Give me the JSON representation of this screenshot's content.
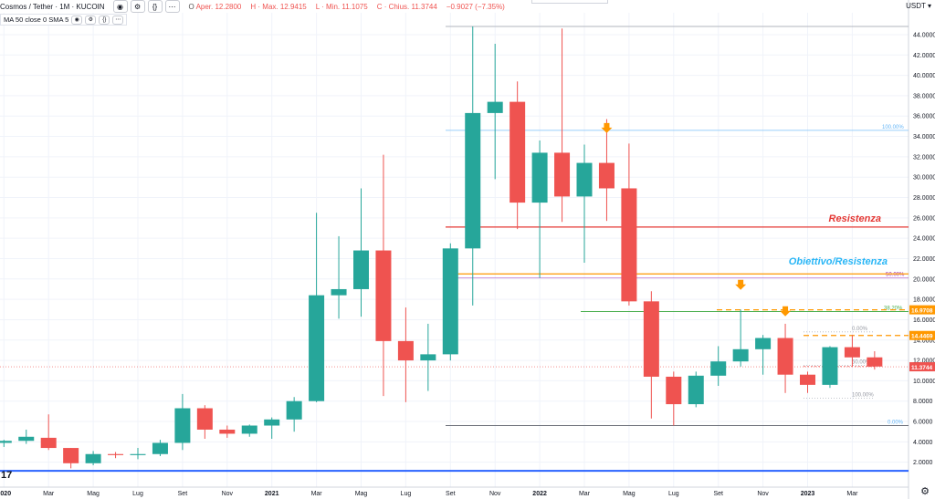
{
  "header": {
    "symbol": "Cosmos / Tether · 1M · KUCOIN",
    "open_label": "O",
    "open": "Aper. 12.2800",
    "high": "H · Max. 12.9415",
    "low": "L · Min. 11.1075",
    "close": "C · Chius. 11.3744",
    "change": "−0.9027 (−7.35%)",
    "eye_icon": "eye-icon",
    "settings_icon": "gear-icon",
    "code_icon": "braces-icon",
    "more_icon": "more-icon"
  },
  "indicator": {
    "label": "MA 50 close 0 SMA 5"
  },
  "axis": {
    "unit": "USDT ▾"
  },
  "colors": {
    "up": "#26a69a",
    "down": "#ef5350",
    "orange": "#ff9800",
    "blue": "#2962ff",
    "grid": "#f0f3fa"
  },
  "chart_data": {
    "type": "candlestick",
    "ylim": [
      0,
      45
    ],
    "y_ticks": [
      "2.0000",
      "4.0000",
      "6.0000",
      "8.0000",
      "10.0000",
      "12.0000",
      "14.0000",
      "16.0000",
      "18.0000",
      "20.0000",
      "22.0000",
      "24.0000",
      "26.0000",
      "28.0000",
      "30.0000",
      "32.0000",
      "34.0000",
      "36.0000",
      "38.0000",
      "40.0000",
      "42.0000",
      "44.0000"
    ],
    "x_labels": [
      "2020",
      "Mar",
      "Mag",
      "Lug",
      "Set",
      "Nov",
      "2021",
      "Mar",
      "Mag",
      "Lug",
      "Set",
      "Nov",
      "2022",
      "Mar",
      "Mag",
      "Lug",
      "Set",
      "Nov",
      "2023",
      "Mar"
    ],
    "candles": [
      {
        "o": 3.9,
        "h": 4.2,
        "l": 3.5,
        "c": 4.1
      },
      {
        "o": 4.1,
        "h": 5.2,
        "l": 3.8,
        "c": 4.5
      },
      {
        "o": 4.4,
        "h": 6.7,
        "l": 3.2,
        "c": 3.4
      },
      {
        "o": 3.4,
        "h": 3.4,
        "l": 1.4,
        "c": 1.9
      },
      {
        "o": 1.9,
        "h": 3.1,
        "l": 1.7,
        "c": 2.8
      },
      {
        "o": 2.8,
        "h": 3.0,
        "l": 2.4,
        "c": 2.7
      },
      {
        "o": 2.7,
        "h": 3.4,
        "l": 2.3,
        "c": 2.8
      },
      {
        "o": 2.8,
        "h": 4.2,
        "l": 2.6,
        "c": 3.9
      },
      {
        "o": 3.9,
        "h": 8.7,
        "l": 3.2,
        "c": 7.3
      },
      {
        "o": 7.3,
        "h": 7.6,
        "l": 4.3,
        "c": 5.2
      },
      {
        "o": 5.2,
        "h": 5.6,
        "l": 4.4,
        "c": 4.8
      },
      {
        "o": 4.8,
        "h": 5.7,
        "l": 4.5,
        "c": 5.6
      },
      {
        "o": 5.6,
        "h": 6.4,
        "l": 4.3,
        "c": 6.2
      },
      {
        "o": 6.2,
        "h": 8.4,
        "l": 5.0,
        "c": 8.0
      },
      {
        "o": 8.0,
        "h": 26.5,
        "l": 7.9,
        "c": 18.4
      },
      {
        "o": 18.4,
        "h": 24.2,
        "l": 16.1,
        "c": 19.0
      },
      {
        "o": 19.0,
        "h": 28.9,
        "l": 16.3,
        "c": 22.8
      },
      {
        "o": 22.8,
        "h": 32.2,
        "l": 8.5,
        "c": 13.9
      },
      {
        "o": 13.9,
        "h": 17.2,
        "l": 7.9,
        "c": 12.0
      },
      {
        "o": 12.0,
        "h": 15.6,
        "l": 9.0,
        "c": 12.6
      },
      {
        "o": 12.6,
        "h": 23.5,
        "l": 12.0,
        "c": 23.0
      },
      {
        "o": 23.0,
        "h": 44.8,
        "l": 17.4,
        "c": 36.3
      },
      {
        "o": 36.3,
        "h": 43.1,
        "l": 29.8,
        "c": 37.4
      },
      {
        "o": 37.4,
        "h": 39.4,
        "l": 24.9,
        "c": 27.5
      },
      {
        "o": 27.5,
        "h": 33.6,
        "l": 20.1,
        "c": 32.4
      },
      {
        "o": 32.4,
        "h": 44.6,
        "l": 25.6,
        "c": 28.1
      },
      {
        "o": 28.1,
        "h": 33.2,
        "l": 21.6,
        "c": 31.4
      },
      {
        "o": 31.4,
        "h": 35.7,
        "l": 25.7,
        "c": 28.9
      },
      {
        "o": 28.9,
        "h": 33.3,
        "l": 17.4,
        "c": 17.8
      },
      {
        "o": 17.8,
        "h": 18.8,
        "l": 6.3,
        "c": 10.4
      },
      {
        "o": 10.4,
        "h": 10.9,
        "l": 5.6,
        "c": 7.7
      },
      {
        "o": 7.7,
        "h": 10.9,
        "l": 7.4,
        "c": 10.5
      },
      {
        "o": 10.5,
        "h": 13.4,
        "l": 9.5,
        "c": 11.9
      },
      {
        "o": 11.9,
        "h": 17.0,
        "l": 11.4,
        "c": 13.1
      },
      {
        "o": 13.1,
        "h": 14.5,
        "l": 10.6,
        "c": 14.2
      },
      {
        "o": 14.2,
        "h": 15.6,
        "l": 8.8,
        "c": 10.6
      },
      {
        "o": 10.6,
        "h": 10.9,
        "l": 8.8,
        "c": 9.6
      },
      {
        "o": 9.6,
        "h": 13.4,
        "l": 9.3,
        "c": 13.3
      },
      {
        "o": 13.3,
        "h": 14.5,
        "l": 11.4,
        "c": 12.3
      },
      {
        "o": 12.3,
        "h": 12.9,
        "l": 11.1,
        "c": 11.4
      }
    ],
    "levels": [
      {
        "name": "Resistenza",
        "value": 25.1,
        "color": "#e53935",
        "from": 39
      },
      {
        "name": "Obiettivo/Resistenza",
        "value": 20.5,
        "color": "#ff9800",
        "from": 39
      },
      {
        "name": "support-line-blue",
        "value": 1.15,
        "color": "#2962ff",
        "from": 0
      }
    ],
    "fib_top": [
      {
        "label": "100.00%",
        "value": 34.6
      },
      {
        "label": "50.00%",
        "value": 20.1
      },
      {
        "label": "0.00%",
        "value": 5.6
      }
    ],
    "fib_bottom": [
      {
        "label": "0.00%",
        "value": 14.8
      },
      {
        "label": "50.00%",
        "value": 11.5
      },
      {
        "label": "100.00%",
        "value": 8.3
      }
    ],
    "green_line": {
      "label": "38.20%",
      "value": 16.8
    },
    "dashed_levels": [
      {
        "label": "16.9708",
        "value": 16.97
      },
      {
        "label": "14.4469",
        "value": 14.45
      }
    ],
    "last_price": {
      "label": "11.3744",
      "value": 11.374
    },
    "arrows": [
      {
        "index": 27,
        "value": 34.6
      },
      {
        "index": 33,
        "value": 19.2
      },
      {
        "index": 35,
        "value": 16.6
      }
    ]
  }
}
